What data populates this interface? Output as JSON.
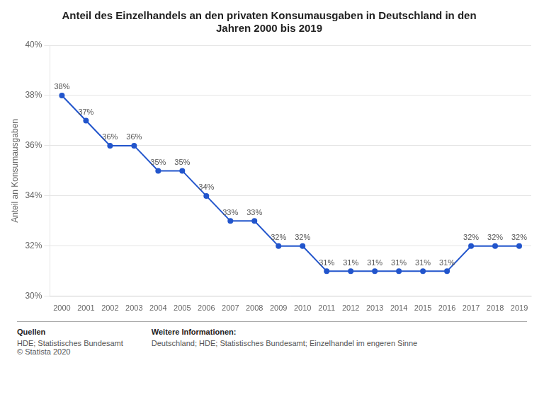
{
  "chart_data": {
    "type": "line",
    "title": "Anteil des Einzelhandels an den privaten Konsumausgaben in Deutschland in den\nJahren 2000 bis 2019",
    "ylabel": "Anteil an Konsumausgaben",
    "x": [
      2000,
      2001,
      2002,
      2003,
      2004,
      2005,
      2006,
      2007,
      2008,
      2009,
      2010,
      2011,
      2012,
      2013,
      2014,
      2015,
      2016,
      2017,
      2018,
      2019
    ],
    "values": [
      38,
      37,
      36,
      36,
      35,
      35,
      34,
      33,
      33,
      32,
      32,
      31,
      31,
      31,
      31,
      31,
      31,
      32,
      32,
      32
    ],
    "value_labels": [
      "38%",
      "37%",
      "36%",
      "36%",
      "35%",
      "35%",
      "34%",
      "33%",
      "33%",
      "32%",
      "32%",
      "31%",
      "31%",
      "31%",
      "31%",
      "31%",
      "31%",
      "32%",
      "32%",
      "32%"
    ],
    "data_labels": true,
    "color": "#2255CC",
    "marker": "circle",
    "xlim": [
      1999.5,
      2019.5
    ],
    "xticks": [
      2000,
      2001,
      2002,
      2003,
      2004,
      2005,
      2006,
      2007,
      2008,
      2009,
      2010,
      2011,
      2012,
      2013,
      2014,
      2015,
      2016,
      2017,
      2018,
      2019
    ],
    "ylim": [
      30,
      40
    ],
    "yticks": [
      {
        "value": 30,
        "label": "30%"
      },
      {
        "value": 32,
        "label": "32%"
      },
      {
        "value": 34,
        "label": "34%"
      },
      {
        "value": 36,
        "label": "36%"
      },
      {
        "value": 38,
        "label": "38%"
      },
      {
        "value": 40,
        "label": "40%"
      }
    ],
    "grid": true,
    "annotations": [
      {
        "title": "Quellen",
        "lines": [
          "HDE; Statistisches Bundesamt",
          "© Statista 2020"
        ]
      },
      {
        "title": "Weitere Informationen:",
        "lines": [
          "Deutschland; HDE; Statistisches Bundesamt; Einzelhandel im engeren Sinne"
        ]
      }
    ]
  }
}
